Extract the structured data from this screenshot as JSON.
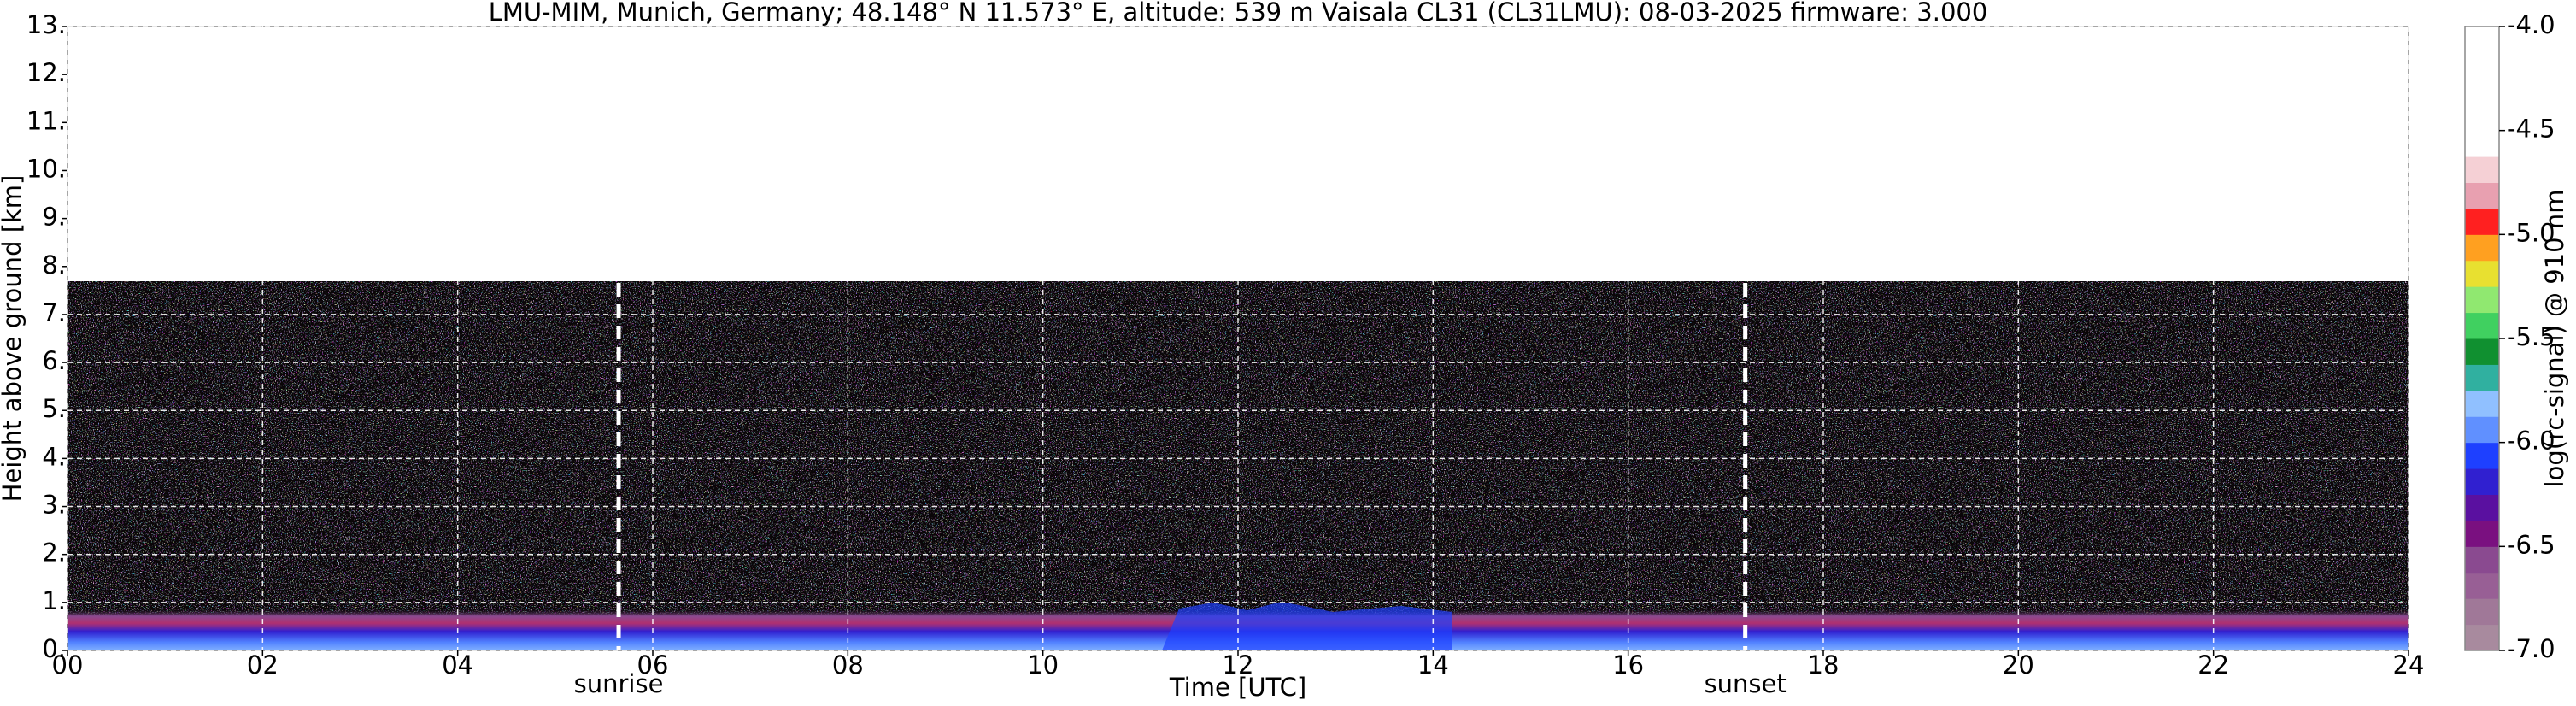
{
  "chart_data": {
    "type": "heatmap",
    "title": "LMU-MIM, Munich, Germany; 48.148° N 11.573° E, altitude: 539 m    Vaisala CL31 (CL31LMU): 08-03-2025    firmware: 3.000",
    "x_label": "Time [UTC]",
    "y_label": "Height above ground [km]",
    "xlim": [
      0,
      24
    ],
    "xticks": [
      {
        "value": 0,
        "label": "00"
      },
      {
        "value": 2,
        "label": "02"
      },
      {
        "value": 4,
        "label": "04"
      },
      {
        "value": 6,
        "label": "06"
      },
      {
        "value": 8,
        "label": "08"
      },
      {
        "value": 10,
        "label": "10"
      },
      {
        "value": 12,
        "label": "12"
      },
      {
        "value": 14,
        "label": "14"
      },
      {
        "value": 16,
        "label": "16"
      },
      {
        "value": 18,
        "label": "18"
      },
      {
        "value": 20,
        "label": "20"
      },
      {
        "value": 22,
        "label": "22"
      },
      {
        "value": 24,
        "label": "24"
      }
    ],
    "ylim": [
      0,
      13
    ],
    "yticks": [
      {
        "value": 0,
        "label": "0."
      },
      {
        "value": 1,
        "label": "1."
      },
      {
        "value": 2,
        "label": "2."
      },
      {
        "value": 3,
        "label": "3."
      },
      {
        "value": 4,
        "label": "4."
      },
      {
        "value": 5,
        "label": "5."
      },
      {
        "value": 6,
        "label": "6."
      },
      {
        "value": 7,
        "label": "7."
      },
      {
        "value": 8,
        "label": "8."
      },
      {
        "value": 9,
        "label": "9."
      },
      {
        "value": 10,
        "label": "10."
      },
      {
        "value": 11,
        "label": "11."
      },
      {
        "value": 12,
        "label": "12."
      },
      {
        "value": 13,
        "label": "13."
      }
    ],
    "grid": true,
    "annotations": [
      {
        "text": "sunrise",
        "x": 5.65
      },
      {
        "text": "sunset",
        "x": 17.2
      }
    ],
    "colorbar": {
      "label": "log(rc-signal) @ 910 nm",
      "lim": [
        -7,
        -4
      ],
      "ticks": [
        {
          "value": -7,
          "label": "-7.0"
        },
        {
          "value": -6.5,
          "label": "-6.5"
        },
        {
          "value": -6,
          "label": "-6.0"
        },
        {
          "value": -5.5,
          "label": "-5.5"
        },
        {
          "value": -5,
          "label": "-5.0"
        },
        {
          "value": -4.5,
          "label": "-4.5"
        },
        {
          "value": -4,
          "label": "-4.0"
        }
      ],
      "colors": [
        "#a88a9e",
        "#a07898",
        "#985f95",
        "#8a4a90",
        "#7a1080",
        "#5a10a0",
        "#3020d0",
        "#1e40ff",
        "#6090ff",
        "#90c0ff",
        "#30b0a0",
        "#109030",
        "#40d060",
        "#90e870",
        "#e8e030",
        "#ffa020",
        "#ff2020",
        "#e8a0b0",
        "#f5d0d5",
        "#ffffff",
        "#ffffff",
        "#ffffff",
        "#ffffff",
        "#ffffff"
      ]
    }
  }
}
